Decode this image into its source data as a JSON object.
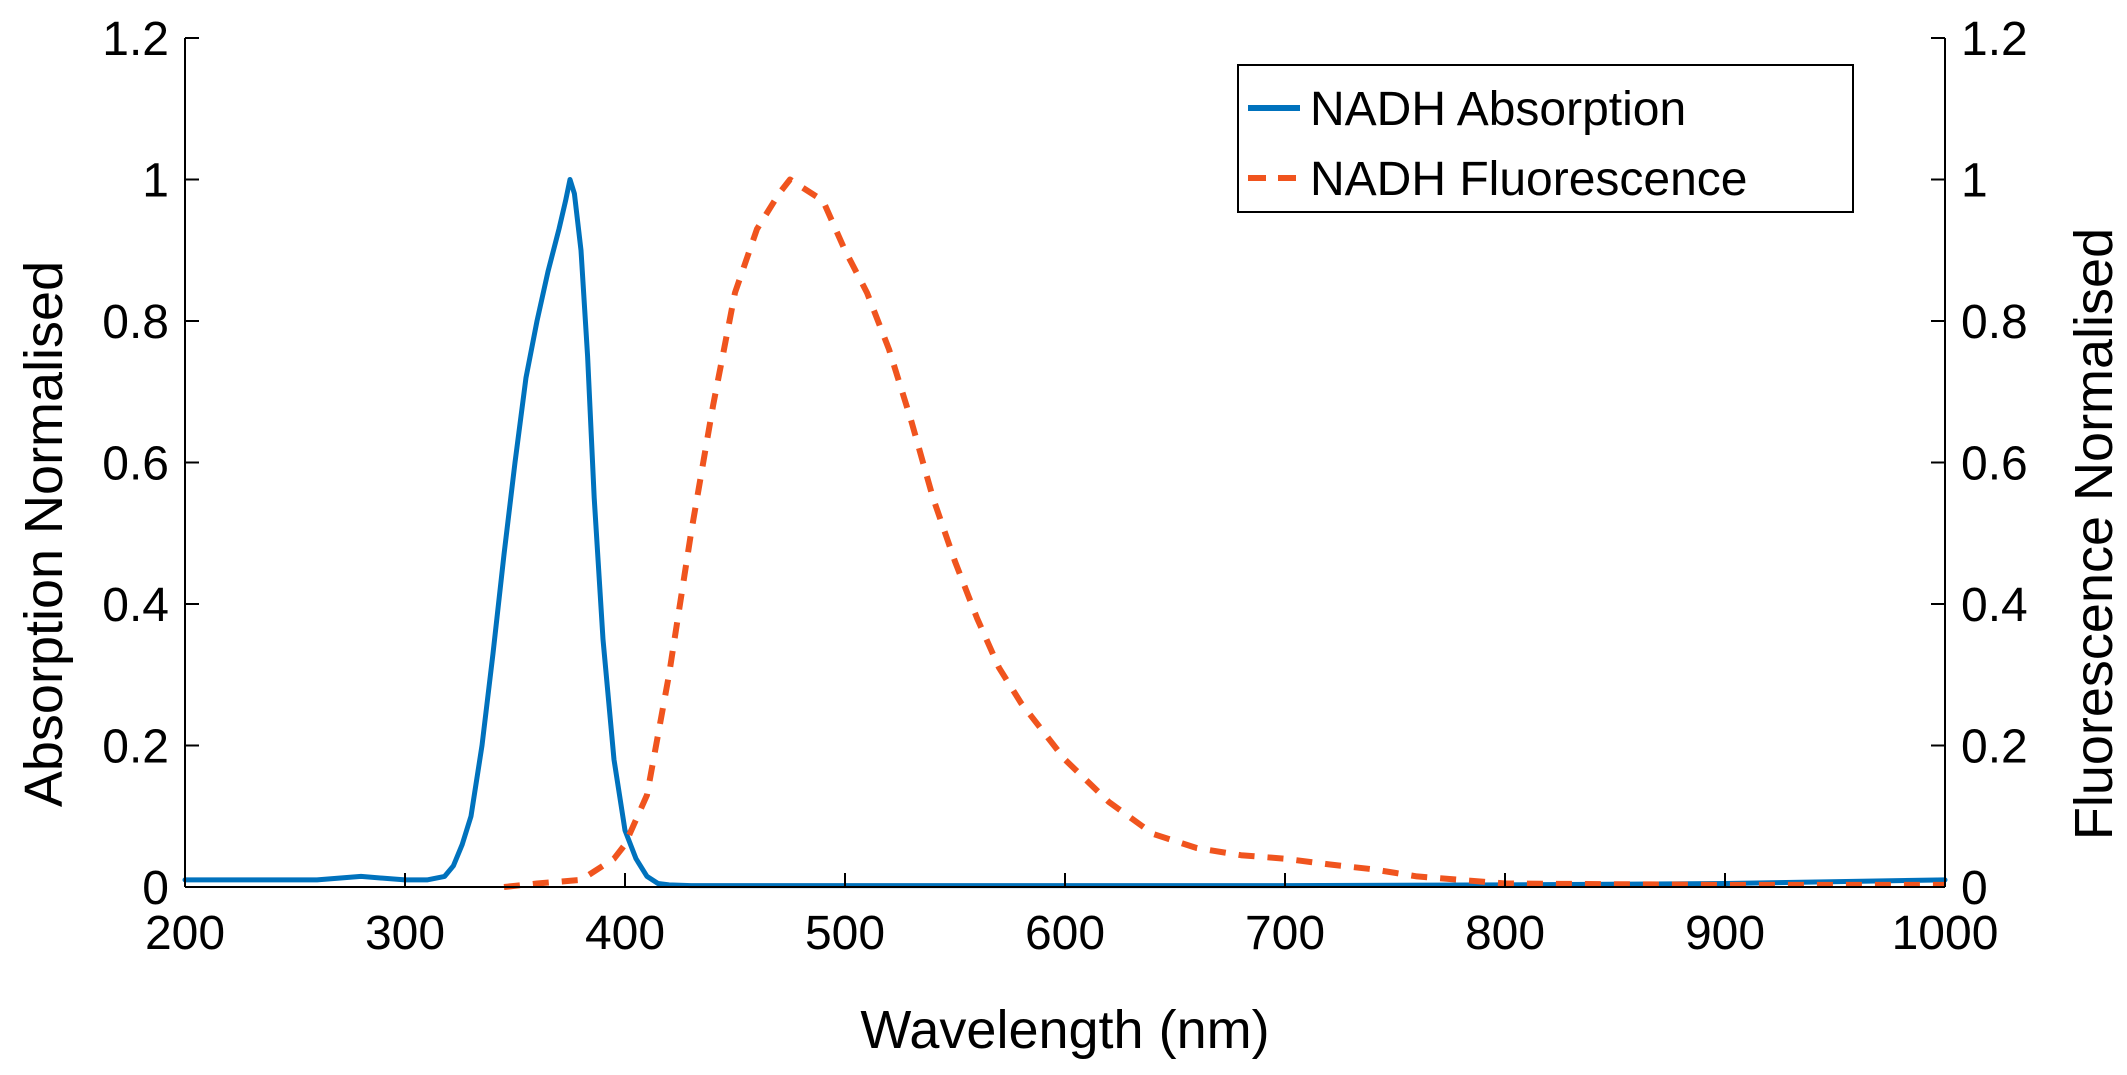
{
  "chart_data": {
    "type": "line",
    "title": "",
    "xlabel": "Wavelength (nm)",
    "ylabel": "Absorption Normalised",
    "ylabel_right": "Fluorescence Normalised",
    "xlim": [
      200,
      1000
    ],
    "ylim": [
      0,
      1.2
    ],
    "ylim_right": [
      0,
      1.2
    ],
    "x_ticks": [
      200,
      300,
      400,
      500,
      600,
      700,
      800,
      900,
      1000
    ],
    "x_tick_labels": [
      "200",
      "300",
      "400",
      "500",
      "600",
      "700",
      "800",
      "900",
      "1000"
    ],
    "y_ticks": [
      0,
      0.2,
      0.4,
      0.6,
      0.8,
      1,
      1.2
    ],
    "y_tick_labels": [
      "0",
      "0.2",
      "0.4",
      "0.6",
      "0.8",
      "1",
      "1.2"
    ],
    "y_ticks_right": [
      0,
      0.2,
      0.4,
      0.6,
      0.8,
      1,
      1.2
    ],
    "y_tick_labels_right": [
      "0",
      "0.2",
      "0.4",
      "0.6",
      "0.8",
      "1",
      "1.2"
    ],
    "grid": false,
    "legend_position": "top-right",
    "series": [
      {
        "name": "NADH Absorption",
        "axis": "left",
        "color": "#0072BD",
        "style": "solid",
        "x": [
          200,
          220,
          240,
          260,
          280,
          300,
          310,
          318,
          322,
          326,
          330,
          335,
          340,
          345,
          350,
          355,
          360,
          365,
          370,
          373,
          375,
          377,
          380,
          383,
          386,
          390,
          395,
          400,
          405,
          410,
          415,
          420,
          430,
          450,
          500,
          600,
          700,
          800,
          900,
          1000
        ],
        "y": [
          0.01,
          0.01,
          0.01,
          0.01,
          0.015,
          0.01,
          0.01,
          0.015,
          0.03,
          0.06,
          0.1,
          0.2,
          0.33,
          0.47,
          0.6,
          0.72,
          0.8,
          0.87,
          0.93,
          0.97,
          1.0,
          0.98,
          0.9,
          0.75,
          0.55,
          0.35,
          0.18,
          0.08,
          0.04,
          0.015,
          0.005,
          0.003,
          0.002,
          0.002,
          0.002,
          0.002,
          0.002,
          0.003,
          0.005,
          0.01
        ]
      },
      {
        "name": "NADH Fluorescence",
        "axis": "right",
        "color": "#F0541E",
        "style": "dashed",
        "x": [
          345,
          360,
          380,
          395,
          400,
          410,
          420,
          430,
          440,
          450,
          460,
          470,
          475,
          480,
          490,
          500,
          510,
          520,
          530,
          540,
          550,
          560,
          570,
          580,
          600,
          620,
          640,
          660,
          680,
          700,
          720,
          740,
          760,
          780,
          800,
          850,
          900,
          950,
          1000
        ],
        "y": [
          0.0,
          0.005,
          0.01,
          0.04,
          0.06,
          0.13,
          0.3,
          0.5,
          0.68,
          0.84,
          0.93,
          0.98,
          1.0,
          0.99,
          0.97,
          0.9,
          0.84,
          0.76,
          0.66,
          0.55,
          0.46,
          0.38,
          0.31,
          0.26,
          0.18,
          0.12,
          0.075,
          0.055,
          0.045,
          0.04,
          0.032,
          0.025,
          0.015,
          0.01,
          0.005,
          0.004,
          0.003,
          0.003,
          0.003
        ]
      }
    ]
  }
}
